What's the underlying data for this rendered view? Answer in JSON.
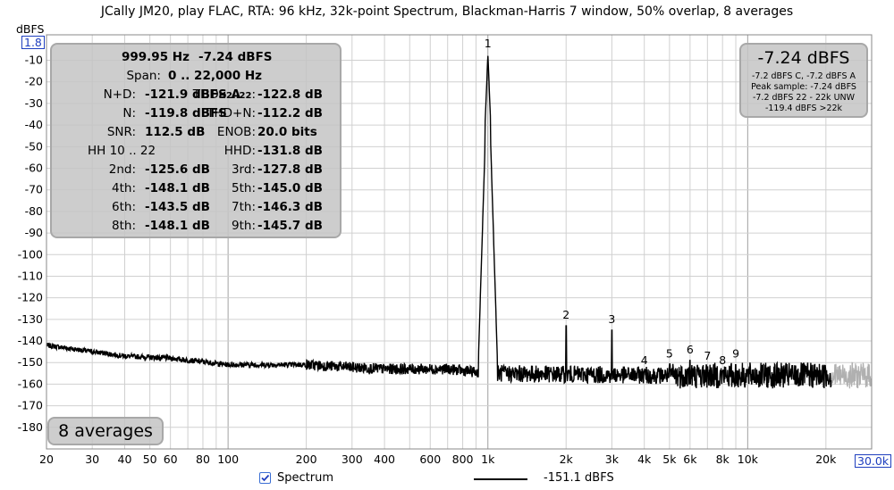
{
  "title": "JCally JM20, play FLAC, RTA: 96 kHz, 32k-point Spectrum, Blackman-Harris 7 window, 50% overlap, 8 averages",
  "y_unit": "dBFS",
  "y_top_box": "1.8",
  "x_right_box": "30.0k",
  "stats": {
    "freq": "999.95 Hz",
    "level": "-7.24 dBFS",
    "span_label": "Span:",
    "span_value": "0 .. 22,000 Hz",
    "rows": [
      {
        "l1": "N+D:",
        "v1": "-121.9 dBFS A",
        "l2": "THD",
        "sub2": "H2..22",
        "v2": "-122.8 dB"
      },
      {
        "l1": "N:",
        "v1": "-119.8 dBFS",
        "l2": "THD+N:",
        "v2": "-112.2 dB"
      },
      {
        "l1": "SNR:",
        "v1": "112.5 dB",
        "l2": "ENOB:",
        "v2": "20.0 bits"
      },
      {
        "l1": "HH 10 .. 22",
        "v1": "",
        "l2": "HHD:",
        "v2": "-131.8 dB"
      },
      {
        "l1": "2nd:",
        "v1": "-125.6 dB",
        "l2": "3rd:",
        "v2": "-127.8 dB"
      },
      {
        "l1": "4th:",
        "v1": "-148.1 dB",
        "l2": "5th:",
        "v2": "-145.0 dB"
      },
      {
        "l1": "6th:",
        "v1": "-143.5 dB",
        "l2": "7th:",
        "v2": "-146.3 dB"
      },
      {
        "l1": "8th:",
        "v1": "-148.1 dB",
        "l2": "9th:",
        "v2": "-145.7 dB"
      }
    ]
  },
  "level_panel": {
    "big": "-7.24 dBFS",
    "lines": [
      "-7.2 dBFS C, -7.2 dBFS A",
      "Peak sample: -7.24 dBFS",
      "-7.2 dBFS 22 - 22k UNW",
      "-119.4 dBFS >22k"
    ]
  },
  "averages_label": "8 averages",
  "legend": {
    "checkbox_label": "Spectrum",
    "checked": true,
    "series_value": "-151.1 dBFS",
    "series_color": "#000000"
  },
  "colors": {
    "trace": "#000000",
    "trace_above_22k": "#b0b0b0",
    "grid": "#d0d0d0",
    "grid_major": "#a0a0a0",
    "accent": "#1f3fbf"
  },
  "chart_data": {
    "type": "line",
    "x_scale": "log",
    "xlim": [
      20,
      30000
    ],
    "ylim": [
      -190,
      1.8
    ],
    "x_ticks": [
      20,
      30,
      40,
      50,
      60,
      80,
      100,
      200,
      300,
      400,
      600,
      800,
      1000,
      2000,
      3000,
      4000,
      5000,
      6000,
      8000,
      10000,
      20000
    ],
    "x_tick_labels": [
      "20",
      "30",
      "40",
      "50",
      "60",
      "80",
      "100",
      "200",
      "300",
      "400",
      "600",
      "800",
      "1k",
      "2k",
      "3k",
      "4k",
      "5k",
      "6k",
      "8k",
      "10k",
      "20k"
    ],
    "y_ticks": [
      -10,
      -20,
      -30,
      -40,
      -50,
      -60,
      -70,
      -80,
      -90,
      -100,
      -110,
      -120,
      -130,
      -140,
      -150,
      -160,
      -170,
      -180
    ],
    "series": [
      {
        "name": "Spectrum",
        "noise_floor_approx": [
          [
            20,
            -142
          ],
          [
            40,
            -147
          ],
          [
            60,
            -148
          ],
          [
            100,
            -151
          ],
          [
            200,
            -151
          ],
          [
            400,
            -153
          ],
          [
            700,
            -153
          ],
          [
            1000,
            -155
          ],
          [
            5000,
            -156
          ],
          [
            20000,
            -156
          ],
          [
            30000,
            -156
          ]
        ],
        "peaks": [
          {
            "label": "1",
            "freq": 1000,
            "level": -7.24
          },
          {
            "label": "2",
            "freq": 2000,
            "level": -133
          },
          {
            "label": "3",
            "freq": 3000,
            "level": -135
          },
          {
            "label": "4",
            "freq": 4000,
            "level": -154
          },
          {
            "label": "5",
            "freq": 5000,
            "level": -151
          },
          {
            "label": "6",
            "freq": 6000,
            "level": -149
          },
          {
            "label": "7",
            "freq": 7000,
            "level": -152
          },
          {
            "label": "8",
            "freq": 8000,
            "level": -154
          },
          {
            "label": "9",
            "freq": 9000,
            "level": -151
          }
        ]
      }
    ],
    "grid": true
  }
}
